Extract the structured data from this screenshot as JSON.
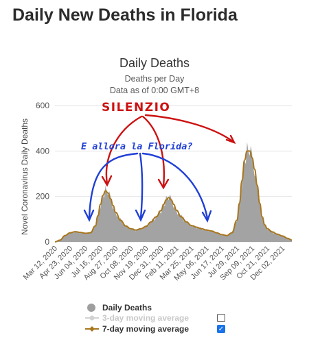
{
  "page": {
    "title": "Daily New Deaths in Florida"
  },
  "chart_data": {
    "type": "area",
    "title": "Daily Deaths",
    "subtitle_lines": [
      "Deaths per Day",
      "Data as of 0:00 GMT+8"
    ],
    "ylabel": "Novel Coronavirus Daily Deaths",
    "ylim": [
      0,
      600
    ],
    "yticks": [
      0,
      200,
      400,
      600
    ],
    "grid": true,
    "x_tick_labels": [
      "Mar 12, 2020",
      "Apr 23, 2020",
      "Jun 04, 2020",
      "Jul 16, 2020",
      "Aug 27, 2020",
      "Oct 08, 2020",
      "Nov 19, 2020",
      "Dec 31, 2020",
      "Feb 11, 2021",
      "Mar 25, 2021",
      "May 06, 2021",
      "Jun 17, 2021",
      "Jul 29, 2021",
      "Sep 09, 2021",
      "Oct 21, 2021",
      "Dec 02, 2021"
    ],
    "series": [
      {
        "name": "Daily Deaths",
        "color": "#9e9e9e",
        "x": [
          "2020-03-12",
          "2020-03-26",
          "2020-04-09",
          "2020-04-23",
          "2020-05-07",
          "2020-05-21",
          "2020-06-04",
          "2020-06-18",
          "2020-07-02",
          "2020-07-09",
          "2020-07-16",
          "2020-07-23",
          "2020-07-30",
          "2020-08-06",
          "2020-08-13",
          "2020-08-20",
          "2020-08-27",
          "2020-09-10",
          "2020-09-24",
          "2020-10-08",
          "2020-10-22",
          "2020-11-05",
          "2020-11-19",
          "2020-12-03",
          "2020-12-17",
          "2020-12-31",
          "2021-01-07",
          "2021-01-14",
          "2021-01-21",
          "2021-01-28",
          "2021-02-04",
          "2021-02-11",
          "2021-02-25",
          "2021-03-11",
          "2021-03-25",
          "2021-04-08",
          "2021-04-22",
          "2021-05-06",
          "2021-05-20",
          "2021-06-03",
          "2021-06-17",
          "2021-07-01",
          "2021-07-15",
          "2021-07-29",
          "2021-08-05",
          "2021-08-12",
          "2021-08-19",
          "2021-08-26",
          "2021-09-02",
          "2021-09-09",
          "2021-09-16",
          "2021-09-23",
          "2021-09-30",
          "2021-10-07",
          "2021-10-14",
          "2021-10-21",
          "2021-11-04",
          "2021-11-18",
          "2021-12-02",
          "2021-12-16",
          "2021-12-28"
        ],
        "y": [
          0,
          8,
          28,
          40,
          45,
          42,
          38,
          40,
          70,
          115,
          165,
          205,
          225,
          215,
          190,
          160,
          130,
          95,
          70,
          58,
          52,
          58,
          68,
          88,
          110,
          138,
          165,
          185,
          195,
          185,
          165,
          140,
          110,
          88,
          72,
          65,
          58,
          52,
          48,
          40,
          32,
          28,
          40,
          95,
          170,
          270,
          360,
          400,
          400,
          370,
          320,
          250,
          170,
          110,
          75,
          58,
          44,
          34,
          26,
          16,
          8
        ]
      },
      {
        "name": "3-day moving average",
        "color": "#cfcfcf",
        "visible": false
      },
      {
        "name": "7-day moving average",
        "color": "#a8761d",
        "x": [
          "2020-03-12",
          "2020-03-26",
          "2020-04-09",
          "2020-04-23",
          "2020-05-07",
          "2020-05-21",
          "2020-06-04",
          "2020-06-18",
          "2020-07-02",
          "2020-07-09",
          "2020-07-16",
          "2020-07-23",
          "2020-07-30",
          "2020-08-06",
          "2020-08-13",
          "2020-08-20",
          "2020-08-27",
          "2020-09-10",
          "2020-09-24",
          "2020-10-08",
          "2020-10-22",
          "2020-11-05",
          "2020-11-19",
          "2020-12-03",
          "2020-12-17",
          "2020-12-31",
          "2021-01-07",
          "2021-01-14",
          "2021-01-21",
          "2021-01-28",
          "2021-02-04",
          "2021-02-11",
          "2021-02-25",
          "2021-03-11",
          "2021-03-25",
          "2021-04-08",
          "2021-04-22",
          "2021-05-06",
          "2021-05-20",
          "2021-06-03",
          "2021-06-17",
          "2021-07-01",
          "2021-07-15",
          "2021-07-29",
          "2021-08-05",
          "2021-08-12",
          "2021-08-19",
          "2021-08-26",
          "2021-09-02",
          "2021-09-09",
          "2021-09-16",
          "2021-09-23",
          "2021-09-30",
          "2021-10-07",
          "2021-10-14",
          "2021-10-21",
          "2021-11-04",
          "2021-11-18",
          "2021-12-02",
          "2021-12-16",
          "2021-12-28"
        ],
        "y": [
          0,
          8,
          28,
          40,
          45,
          42,
          38,
          40,
          70,
          115,
          165,
          205,
          225,
          215,
          190,
          160,
          130,
          95,
          70,
          58,
          52,
          58,
          68,
          88,
          110,
          138,
          165,
          185,
          195,
          185,
          165,
          140,
          110,
          88,
          72,
          65,
          58,
          52,
          48,
          40,
          32,
          28,
          40,
          95,
          170,
          270,
          360,
          400,
          400,
          370,
          320,
          250,
          170,
          110,
          75,
          58,
          44,
          34,
          26,
          16,
          8
        ]
      }
    ],
    "legend": {
      "placement": "bottom",
      "items": [
        {
          "label": "Daily Deaths",
          "color": "#9e9e9e",
          "checkbox": null
        },
        {
          "label": "3-day moving average",
          "color": "#cfcfcf",
          "checkbox": false
        },
        {
          "label": "7-day moving average",
          "color": "#a8761d",
          "checkbox": true
        }
      ]
    },
    "annotations": [
      {
        "text": "SILENZIO",
        "color": "#cc1111"
      },
      {
        "text": "E allora la Florida?",
        "color": "#1f3fd6"
      }
    ]
  }
}
